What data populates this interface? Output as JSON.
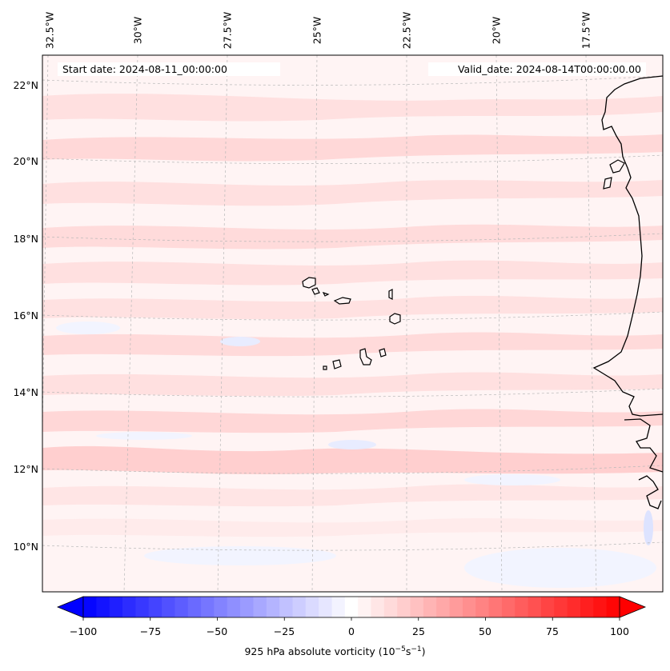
{
  "map": {
    "longitude_labels": [
      "32.5°W",
      "30°W",
      "27.5°W",
      "25°W",
      "22.5°W",
      "20°W",
      "17.5°W"
    ],
    "latitude_labels": [
      "22°N",
      "20°N",
      "18°N",
      "16°N",
      "14°N",
      "12°N",
      "10°N"
    ],
    "start_date": "Start date: 2024-08-11_00:00:00",
    "valid_date": "Valid_date: 2024-08-14T00:00:00.00",
    "field_colors": {
      "positive": "#ff0000",
      "negative": "#0000ff",
      "neutral": "#ffffff"
    },
    "coastline_color": "#000000"
  },
  "colorbar": {
    "ticks": [
      "−100",
      "−75",
      "−50",
      "−25",
      "0",
      "25",
      "50",
      "75",
      "100"
    ],
    "label_prefix": "925 hPa absolute vorticity (10",
    "exp1": "−5",
    "mid": "s",
    "exp2": "−1",
    "label_suffix": ")",
    "min": -100,
    "max": 100,
    "levels": 41
  }
}
